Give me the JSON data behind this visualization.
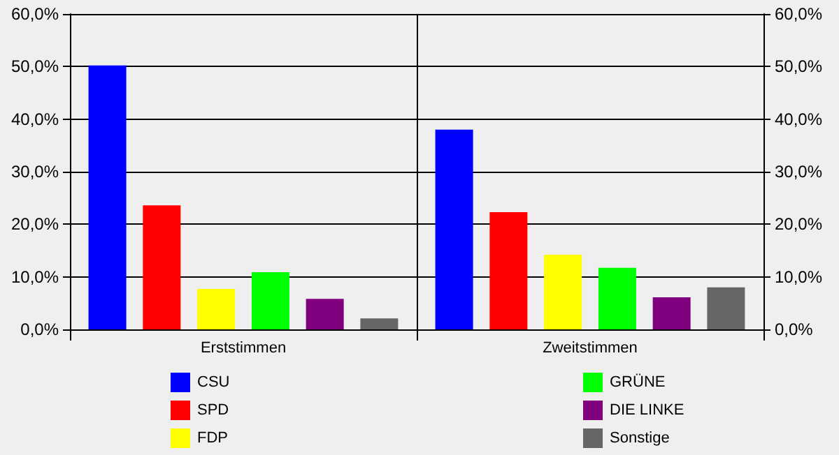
{
  "chart_data": {
    "type": "bar",
    "categories": [
      "Erststimmen",
      "Zweitstimmen"
    ],
    "series": [
      {
        "name": "CSU",
        "color": "#0000ff",
        "values": [
          50.2,
          38.0
        ]
      },
      {
        "name": "SPD",
        "color": "#ff0000",
        "values": [
          23.6,
          22.3
        ]
      },
      {
        "name": "FDP",
        "color": "#ffff00",
        "values": [
          7.7,
          14.2
        ]
      },
      {
        "name": "GRÜNE",
        "color": "#00ff00",
        "values": [
          10.9,
          11.7
        ]
      },
      {
        "name": "DIE LINKE",
        "color": "#800080",
        "values": [
          5.8,
          6.1
        ]
      },
      {
        "name": "Sonstige",
        "color": "#666666",
        "values": [
          2.1,
          8.0
        ]
      }
    ],
    "ylim": [
      0,
      60
    ],
    "yticks": [
      {
        "value": 0,
        "label": "0,0%"
      },
      {
        "value": 10,
        "label": "10,0%"
      },
      {
        "value": 20,
        "label": "20,0%"
      },
      {
        "value": 30,
        "label": "30,0%"
      },
      {
        "value": 40,
        "label": "40,0%"
      },
      {
        "value": 50,
        "label": "50,0%"
      },
      {
        "value": 60,
        "label": "60,0%"
      }
    ],
    "y2lim": [
      0,
      60
    ],
    "y2ticks": [
      {
        "value": 0,
        "label": "0,0%"
      },
      {
        "value": 10,
        "label": "10,0%"
      },
      {
        "value": 20,
        "label": "20,0%"
      },
      {
        "value": 30,
        "label": "30,0%"
      },
      {
        "value": 40,
        "label": "40,0%"
      },
      {
        "value": 50,
        "label": "50,0%"
      },
      {
        "value": 60,
        "label": "60,0%"
      }
    ],
    "grid": "y",
    "legend": "bottom"
  }
}
